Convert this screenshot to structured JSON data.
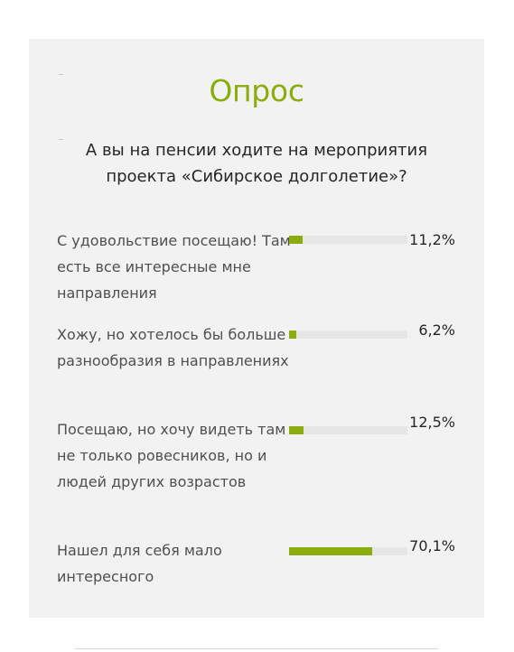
{
  "poll": {
    "title": "Опрос",
    "question": "А вы на пенсии ходите на мероприятия проекта «Сибирское долголетие»?",
    "accent_color": "#8aac0c",
    "options": [
      {
        "label": "С удовольствие посещаю! Там есть все интересные мне направления",
        "percent_text": "11,2%",
        "percent": 11.2
      },
      {
        "label": "Хожу, но хотелось бы больше разнообразия в направлениях",
        "percent_text": "6,2%",
        "percent": 6.2
      },
      {
        "label": "Посещаю, но хочу видеть там не только ровесников, но и людей других возрастов",
        "percent_text": "12,5%",
        "percent": 12.5
      },
      {
        "label": "Нашел для себя мало интересного",
        "percent_text": "70,1%",
        "percent": 70.1
      }
    ]
  }
}
